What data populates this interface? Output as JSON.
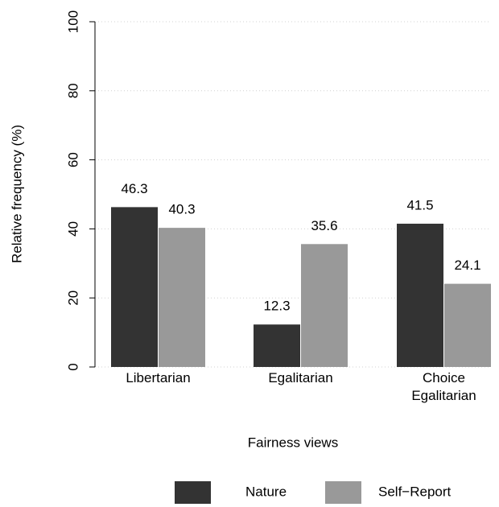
{
  "chart_data": {
    "type": "bar",
    "x_label": "Fairness views",
    "y_label": "Relative frequency (%)",
    "categories": [
      "Libertarian",
      "Egalitarian",
      "Choice\nEgalitarian"
    ],
    "series": [
      {
        "name": "Nature",
        "color": "#333333",
        "values": [
          46.3,
          12.3,
          41.5
        ]
      },
      {
        "name": "Self−Report",
        "color": "#999999",
        "values": [
          40.3,
          35.6,
          24.1
        ]
      }
    ],
    "ylim": [
      0,
      100
    ],
    "yticks": [
      0,
      20,
      40,
      60,
      80,
      100
    ],
    "grid": true,
    "legend": "bottom"
  }
}
